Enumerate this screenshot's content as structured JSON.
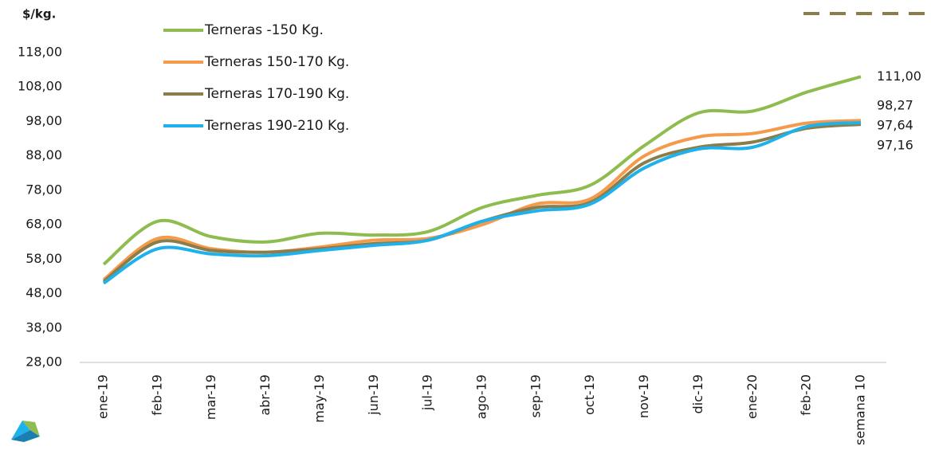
{
  "chart_data": {
    "type": "line",
    "ylabel": "$/kg.",
    "categories": [
      "ene-19",
      "feb-19",
      "mar-19",
      "abr-19",
      "may-19",
      "jun-19",
      "jul-19",
      "ago-19",
      "sep-19",
      "oct-19",
      "nov-19",
      "dic-19",
      "ene-20",
      "feb-20",
      "semana 10"
    ],
    "series": [
      {
        "name": "Terneras -150 Kg.",
        "color": "#8fbc4f",
        "label_color": "#7dab3f",
        "values": [
          56.5,
          69,
          64.5,
          63,
          65.5,
          65,
          66,
          73,
          76.5,
          79.5,
          91,
          100.5,
          101,
          106.5,
          111
        ],
        "value_labels": [
          null,
          null,
          null,
          null,
          null,
          null,
          null,
          null,
          null,
          null,
          null,
          null,
          null,
          null,
          "111,00"
        ]
      },
      {
        "name": "Terneras 150-170 Kg.",
        "color": "#f5994a",
        "label_color": "#f08a3a",
        "values": [
          52,
          64,
          61,
          60,
          61.5,
          63.5,
          64,
          68,
          74,
          75.5,
          88,
          93.5,
          94.5,
          97.5,
          98.27
        ],
        "value_labels": [
          null,
          null,
          null,
          null,
          null,
          null,
          null,
          null,
          null,
          null,
          null,
          null,
          null,
          null,
          "98,27"
        ]
      },
      {
        "name": "Terneras 170-190 Kg.",
        "color": "#8b7d4a",
        "label_color": "#8a7a3a",
        "values": [
          51.5,
          63,
          60.5,
          60,
          61,
          62.5,
          63.5,
          69,
          73,
          74.5,
          86,
          90.5,
          92,
          96,
          97.16
        ],
        "value_labels": [
          null,
          null,
          null,
          null,
          null,
          null,
          null,
          null,
          null,
          null,
          null,
          null,
          null,
          null,
          "97,16"
        ]
      },
      {
        "name": "Terneras 190-210 Kg.",
        "color": "#1fb1ec",
        "label_color": "#8fd0ec",
        "values": [
          51,
          61,
          59.5,
          59,
          60.5,
          62,
          63.5,
          69,
          72,
          74,
          84.5,
          90,
          90.5,
          96.5,
          97.64
        ],
        "value_labels": [
          null,
          null,
          null,
          null,
          null,
          null,
          null,
          null,
          null,
          null,
          null,
          null,
          null,
          null,
          "97,64"
        ]
      }
    ],
    "ylim": [
      28,
      118
    ],
    "yticks": [
      {
        "value": 28,
        "label": "28,00"
      },
      {
        "value": 38,
        "label": "38,00"
      },
      {
        "value": 48,
        "label": "48,00"
      },
      {
        "value": 58,
        "label": "58,00"
      },
      {
        "value": 68,
        "label": "68,00"
      },
      {
        "value": 78,
        "label": "78,00"
      },
      {
        "value": 88,
        "label": "88,00"
      },
      {
        "value": 98,
        "label": "98,00"
      },
      {
        "value": 108,
        "label": "108,00"
      },
      {
        "value": 118,
        "label": "118,00"
      }
    ],
    "grid": false
  }
}
